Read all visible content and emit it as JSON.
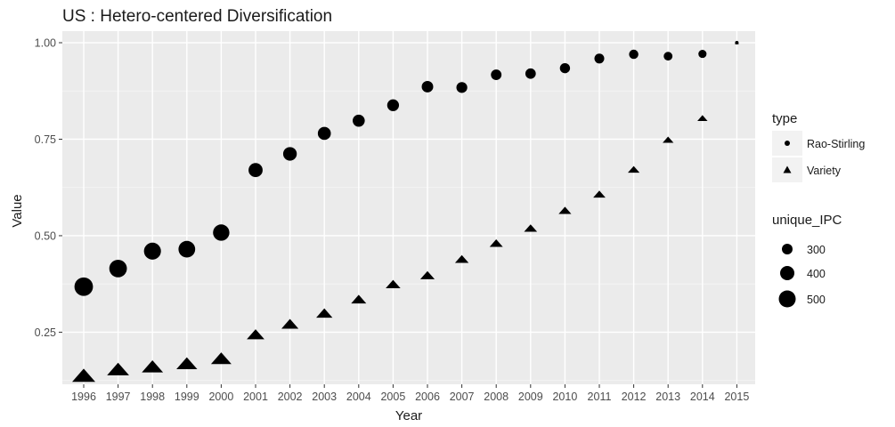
{
  "chart_data": {
    "type": "scatter",
    "title": "US : Hetero-centered Diversification",
    "xlabel": "Year",
    "ylabel": "Value",
    "x": [
      "1996",
      "1997",
      "1998",
      "1999",
      "2000",
      "2001",
      "2002",
      "2003",
      "2004",
      "2005",
      "2006",
      "2007",
      "2008",
      "2009",
      "2010",
      "2011",
      "2012",
      "2013",
      "2014",
      "2015"
    ],
    "ylim": [
      0.115,
      1.03
    ],
    "yticks": [
      "0.25",
      "0.50",
      "0.75",
      "1.00"
    ],
    "grid": true,
    "series": [
      {
        "name": "Rao-Stirling",
        "shape": "circle",
        "values": [
          0.368,
          0.415,
          0.46,
          0.465,
          0.508,
          0.67,
          0.712,
          0.765,
          0.798,
          0.838,
          0.886,
          0.884,
          0.917,
          0.92,
          0.934,
          0.959,
          0.97,
          0.965,
          0.971,
          1.0
        ]
      },
      {
        "name": "Variety",
        "shape": "triangle",
        "values": [
          0.139,
          0.155,
          0.162,
          0.17,
          0.183,
          0.245,
          0.272,
          0.3,
          0.336,
          0.375,
          0.398,
          0.44,
          0.481,
          0.52,
          0.566,
          0.608,
          0.672,
          0.749,
          0.805,
          1.0
        ]
      }
    ],
    "unique_ipc": [
      540,
      510,
      490,
      480,
      470,
      395,
      380,
      360,
      330,
      320,
      310,
      290,
      280,
      275,
      265,
      255,
      240,
      220,
      200,
      50
    ],
    "legend": {
      "placement": "right",
      "type_title": "type",
      "type_entries": [
        "Rao-Stirling",
        "Variety"
      ],
      "size_title": "unique_IPC",
      "size_entries": [
        300,
        400,
        500
      ]
    },
    "colors": {
      "panel": "#ebebeb",
      "grid_major": "#ffffff",
      "point": "#000000"
    }
  }
}
